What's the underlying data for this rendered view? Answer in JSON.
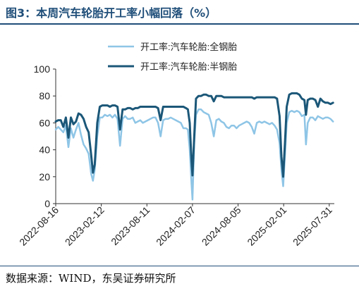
{
  "figure": {
    "title": "图3：本周汽车轮胎开工率小幅回落（%）",
    "source": "数据来源：WIND，东吴证券研究所"
  },
  "colors": {
    "title": "#1f4e79",
    "series_full_steel": "#8ec5e6",
    "series_semi_steel": "#1b5778"
  },
  "chart_data": {
    "type": "line",
    "title": "",
    "xlabel": "",
    "ylabel": "",
    "ylim": [
      0,
      100
    ],
    "yticks": [
      0,
      20,
      40,
      60,
      80,
      100
    ],
    "xlim": [
      "2022-08-16",
      "2025-08-20"
    ],
    "xticks": [
      "2022-08-16",
      "2023-02-12",
      "2023-08-11",
      "2024-02-07",
      "2024-08-05",
      "2025-02-01",
      "2025-07-31"
    ],
    "grid": false,
    "legend": "top-center",
    "series": [
      {
        "name": "开工率:汽车轮胎:全钢胎",
        "color": "#8ec5e6",
        "points": [
          [
            "2022-08-16",
            55
          ],
          [
            "2022-08-26",
            57
          ],
          [
            "2022-09-05",
            55
          ],
          [
            "2022-09-15",
            53
          ],
          [
            "2022-09-25",
            58
          ],
          [
            "2022-10-05",
            42
          ],
          [
            "2022-10-15",
            56
          ],
          [
            "2022-10-25",
            49
          ],
          [
            "2022-11-04",
            55
          ],
          [
            "2022-11-14",
            60
          ],
          [
            "2022-11-24",
            51
          ],
          [
            "2022-12-04",
            44
          ],
          [
            "2022-12-14",
            41
          ],
          [
            "2022-12-24",
            37
          ],
          [
            "2023-01-03",
            22
          ],
          [
            "2023-01-10",
            17
          ],
          [
            "2023-01-17",
            25
          ],
          [
            "2023-01-27",
            50
          ],
          [
            "2023-02-06",
            64
          ],
          [
            "2023-02-16",
            64
          ],
          [
            "2023-02-26",
            66
          ],
          [
            "2023-03-08",
            65
          ],
          [
            "2023-03-18",
            66
          ],
          [
            "2023-03-28",
            64
          ],
          [
            "2023-04-07",
            66
          ],
          [
            "2023-04-17",
            63
          ],
          [
            "2023-04-27",
            43
          ],
          [
            "2023-05-07",
            63
          ],
          [
            "2023-05-17",
            65
          ],
          [
            "2023-05-27",
            63
          ],
          [
            "2023-06-06",
            63
          ],
          [
            "2023-06-16",
            64
          ],
          [
            "2023-06-26",
            60
          ],
          [
            "2023-07-06",
            61
          ],
          [
            "2023-07-16",
            62
          ],
          [
            "2023-07-26",
            60
          ],
          [
            "2023-08-05",
            61
          ],
          [
            "2023-08-15",
            62
          ],
          [
            "2023-08-25",
            63
          ],
          [
            "2023-09-04",
            64
          ],
          [
            "2023-09-14",
            64
          ],
          [
            "2023-09-24",
            60
          ],
          [
            "2023-10-04",
            50
          ],
          [
            "2023-10-14",
            62
          ],
          [
            "2023-10-24",
            63
          ],
          [
            "2023-11-03",
            63
          ],
          [
            "2023-11-13",
            64
          ],
          [
            "2023-11-23",
            63
          ],
          [
            "2023-12-03",
            62
          ],
          [
            "2023-12-13",
            61
          ],
          [
            "2023-12-23",
            60
          ],
          [
            "2024-01-02",
            56
          ],
          [
            "2024-01-12",
            56
          ],
          [
            "2024-01-20",
            55
          ],
          [
            "2024-01-27",
            40
          ],
          [
            "2024-02-03",
            15
          ],
          [
            "2024-02-07",
            3
          ],
          [
            "2024-02-14",
            45
          ],
          [
            "2024-02-21",
            66
          ],
          [
            "2024-03-02",
            70
          ],
          [
            "2024-03-12",
            70
          ],
          [
            "2024-03-22",
            68
          ],
          [
            "2024-04-01",
            67
          ],
          [
            "2024-04-11",
            66
          ],
          [
            "2024-04-21",
            60
          ],
          [
            "2024-05-01",
            50
          ],
          [
            "2024-05-11",
            62
          ],
          [
            "2024-05-21",
            63
          ],
          [
            "2024-05-31",
            61
          ],
          [
            "2024-06-10",
            60
          ],
          [
            "2024-06-20",
            57
          ],
          [
            "2024-06-30",
            56
          ],
          [
            "2024-07-10",
            58
          ],
          [
            "2024-07-20",
            58
          ],
          [
            "2024-07-30",
            56
          ],
          [
            "2024-08-09",
            58
          ],
          [
            "2024-08-19",
            59
          ],
          [
            "2024-08-29",
            60
          ],
          [
            "2024-09-08",
            61
          ],
          [
            "2024-09-18",
            60
          ],
          [
            "2024-09-28",
            57
          ],
          [
            "2024-10-08",
            52
          ],
          [
            "2024-10-18",
            60
          ],
          [
            "2024-10-28",
            61
          ],
          [
            "2024-11-07",
            60
          ],
          [
            "2024-11-17",
            61
          ],
          [
            "2024-11-27",
            60
          ],
          [
            "2024-12-07",
            59
          ],
          [
            "2024-12-17",
            60
          ],
          [
            "2024-12-27",
            58
          ],
          [
            "2025-01-06",
            55
          ],
          [
            "2025-01-16",
            45
          ],
          [
            "2025-01-23",
            25
          ],
          [
            "2025-01-30",
            13
          ],
          [
            "2025-02-06",
            35
          ],
          [
            "2025-02-13",
            60
          ],
          [
            "2025-02-23",
            68
          ],
          [
            "2025-03-05",
            69
          ],
          [
            "2025-03-15",
            68
          ],
          [
            "2025-03-25",
            69
          ],
          [
            "2025-04-04",
            68
          ],
          [
            "2025-04-14",
            65
          ],
          [
            "2025-04-24",
            66
          ],
          [
            "2025-04-30",
            44
          ],
          [
            "2025-05-07",
            60
          ],
          [
            "2025-05-17",
            64
          ],
          [
            "2025-05-27",
            64
          ],
          [
            "2025-06-06",
            62
          ],
          [
            "2025-06-16",
            65
          ],
          [
            "2025-06-26",
            64
          ],
          [
            "2025-07-06",
            63
          ],
          [
            "2025-07-16",
            64
          ],
          [
            "2025-07-26",
            64
          ],
          [
            "2025-08-05",
            63
          ],
          [
            "2025-08-15",
            61
          ]
        ]
      },
      {
        "name": "开工率:汽车轮胎:半钢胎",
        "color": "#1b5778",
        "points": [
          [
            "2022-08-16",
            61
          ],
          [
            "2022-08-26",
            62
          ],
          [
            "2022-09-05",
            62
          ],
          [
            "2022-09-15",
            57
          ],
          [
            "2022-09-25",
            64
          ],
          [
            "2022-10-05",
            49
          ],
          [
            "2022-10-15",
            64
          ],
          [
            "2022-10-25",
            59
          ],
          [
            "2022-11-04",
            61
          ],
          [
            "2022-11-14",
            67
          ],
          [
            "2022-11-24",
            66
          ],
          [
            "2022-12-04",
            63
          ],
          [
            "2022-12-14",
            57
          ],
          [
            "2022-12-24",
            53
          ],
          [
            "2023-01-03",
            36
          ],
          [
            "2023-01-10",
            23
          ],
          [
            "2023-01-17",
            29
          ],
          [
            "2023-01-27",
            60
          ],
          [
            "2023-02-06",
            72
          ],
          [
            "2023-02-16",
            73
          ],
          [
            "2023-02-26",
            73
          ],
          [
            "2023-03-08",
            73
          ],
          [
            "2023-03-18",
            72
          ],
          [
            "2023-03-28",
            73
          ],
          [
            "2023-04-07",
            73
          ],
          [
            "2023-04-17",
            72
          ],
          [
            "2023-04-27",
            55
          ],
          [
            "2023-05-07",
            70
          ],
          [
            "2023-05-17",
            70
          ],
          [
            "2023-05-27",
            71
          ],
          [
            "2023-06-06",
            71
          ],
          [
            "2023-06-16",
            70
          ],
          [
            "2023-06-26",
            71
          ],
          [
            "2023-07-06",
            71
          ],
          [
            "2023-07-16",
            72
          ],
          [
            "2023-07-26",
            72
          ],
          [
            "2023-08-05",
            72
          ],
          [
            "2023-08-15",
            72
          ],
          [
            "2023-08-25",
            72
          ],
          [
            "2023-09-04",
            72
          ],
          [
            "2023-09-14",
            72
          ],
          [
            "2023-09-24",
            71
          ],
          [
            "2023-10-04",
            62
          ],
          [
            "2023-10-14",
            72
          ],
          [
            "2023-10-24",
            72
          ],
          [
            "2023-11-03",
            72
          ],
          [
            "2023-11-13",
            72
          ],
          [
            "2023-11-23",
            72
          ],
          [
            "2023-12-03",
            72
          ],
          [
            "2023-12-13",
            72
          ],
          [
            "2023-12-23",
            72
          ],
          [
            "2024-01-02",
            72
          ],
          [
            "2024-01-12",
            71
          ],
          [
            "2024-01-20",
            70
          ],
          [
            "2024-01-27",
            60
          ],
          [
            "2024-02-03",
            32
          ],
          [
            "2024-02-07",
            21
          ],
          [
            "2024-02-14",
            50
          ],
          [
            "2024-02-21",
            78
          ],
          [
            "2024-03-02",
            80
          ],
          [
            "2024-03-12",
            80
          ],
          [
            "2024-03-22",
            81
          ],
          [
            "2024-04-01",
            81
          ],
          [
            "2024-04-11",
            80
          ],
          [
            "2024-04-21",
            80
          ],
          [
            "2024-05-01",
            76
          ],
          [
            "2024-05-11",
            80
          ],
          [
            "2024-05-21",
            80
          ],
          [
            "2024-05-31",
            80
          ],
          [
            "2024-06-10",
            79
          ],
          [
            "2024-06-20",
            79
          ],
          [
            "2024-06-30",
            79
          ],
          [
            "2024-07-10",
            79
          ],
          [
            "2024-07-20",
            79
          ],
          [
            "2024-07-30",
            79
          ],
          [
            "2024-08-09",
            79
          ],
          [
            "2024-08-19",
            79
          ],
          [
            "2024-08-29",
            79
          ],
          [
            "2024-09-08",
            79
          ],
          [
            "2024-09-18",
            79
          ],
          [
            "2024-09-28",
            79
          ],
          [
            "2024-10-08",
            78
          ],
          [
            "2024-10-18",
            79
          ],
          [
            "2024-10-28",
            79
          ],
          [
            "2024-11-07",
            79
          ],
          [
            "2024-11-17",
            79
          ],
          [
            "2024-11-27",
            79
          ],
          [
            "2024-12-07",
            79
          ],
          [
            "2024-12-17",
            79
          ],
          [
            "2024-12-27",
            79
          ],
          [
            "2025-01-06",
            78
          ],
          [
            "2025-01-16",
            65
          ],
          [
            "2025-01-23",
            35
          ],
          [
            "2025-01-30",
            20
          ],
          [
            "2025-02-06",
            45
          ],
          [
            "2025-02-13",
            72
          ],
          [
            "2025-02-23",
            81
          ],
          [
            "2025-03-05",
            82
          ],
          [
            "2025-03-15",
            82
          ],
          [
            "2025-03-25",
            82
          ],
          [
            "2025-04-04",
            81
          ],
          [
            "2025-04-14",
            78
          ],
          [
            "2025-04-24",
            77
          ],
          [
            "2025-04-30",
            66
          ],
          [
            "2025-05-07",
            77
          ],
          [
            "2025-05-17",
            78
          ],
          [
            "2025-05-27",
            78
          ],
          [
            "2025-06-06",
            77
          ],
          [
            "2025-06-16",
            72
          ],
          [
            "2025-06-26",
            78
          ],
          [
            "2025-07-06",
            76
          ],
          [
            "2025-07-16",
            75
          ],
          [
            "2025-07-26",
            75
          ],
          [
            "2025-08-05",
            74
          ],
          [
            "2025-08-15",
            75
          ]
        ]
      }
    ]
  }
}
